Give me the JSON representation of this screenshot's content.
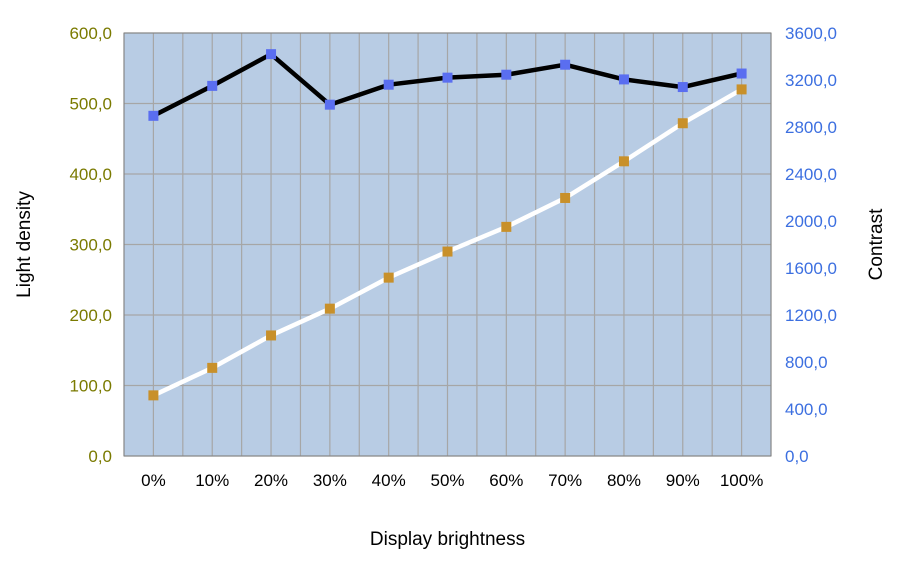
{
  "chart_data": {
    "type": "line",
    "xlabel": "Display brightness",
    "ylabel_left": "Light density",
    "ylabel_right": "Contrast",
    "categories": [
      "0%",
      "10%",
      "20%",
      "30%",
      "40%",
      "50%",
      "60%",
      "70%",
      "80%",
      "90%",
      "100%"
    ],
    "y_left": {
      "range": [
        0,
        600
      ],
      "ticks": [
        0,
        100,
        200,
        300,
        400,
        500,
        600
      ],
      "tick_labels": [
        "0,0",
        "100,0",
        "200,0",
        "300,0",
        "400,0",
        "500,0",
        "600,0"
      ]
    },
    "y_right": {
      "range": [
        0,
        3600
      ],
      "ticks": [
        0,
        400,
        800,
        1200,
        1600,
        2000,
        2400,
        2800,
        3200,
        3600
      ],
      "tick_labels": [
        "0,0",
        "400,0",
        "800,0",
        "1200,0",
        "1600,0",
        "2000,0",
        "2400,0",
        "2800,0",
        "3200,0",
        "3600,0"
      ]
    },
    "series": [
      {
        "axis": "left",
        "line_color": "#ffffff",
        "marker_color": "#c8902a",
        "values": [
          86,
          125,
          171,
          209,
          253,
          290,
          325,
          366,
          418,
          472,
          520
        ]
      },
      {
        "axis": "right",
        "line_color": "#000000",
        "marker_color": "#5a6ef0",
        "values": [
          2895,
          3150,
          3420,
          2990,
          3160,
          3220,
          3245,
          3330,
          3205,
          3140,
          3255
        ]
      }
    ],
    "plot_background": "#b8cce4",
    "grid_color": "#a6a6a6",
    "left_axis_color": "#7a7a00",
    "right_axis_color": "#3c6fe0",
    "grid": true,
    "legend": "none"
  }
}
